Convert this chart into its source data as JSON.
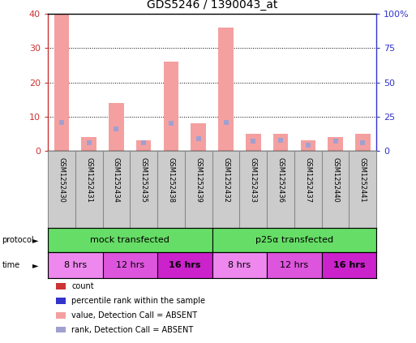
{
  "title": "GDS5246 / 1390043_at",
  "samples": [
    "GSM1252430",
    "GSM1252431",
    "GSM1252434",
    "GSM1252435",
    "GSM1252438",
    "GSM1252439",
    "GSM1252432",
    "GSM1252433",
    "GSM1252436",
    "GSM1252437",
    "GSM1252440",
    "GSM1252441"
  ],
  "bar_values": [
    40,
    4,
    14,
    3,
    26,
    8,
    36,
    5,
    5,
    3,
    4,
    5
  ],
  "rank_values": [
    21,
    6,
    16,
    6,
    20,
    9,
    21,
    7,
    8,
    4,
    7,
    6
  ],
  "ylim_left": [
    0,
    40
  ],
  "ylim_right": [
    0,
    100
  ],
  "yticks_left": [
    0,
    10,
    20,
    30,
    40
  ],
  "yticks_right": [
    0,
    25,
    50,
    75,
    100
  ],
  "ytick_labels_right": [
    "0",
    "25",
    "50",
    "75",
    "100%"
  ],
  "bar_color": "#f4a0a0",
  "rank_color": "#a0a0d0",
  "protocol_groups": [
    {
      "label": "mock transfected",
      "start": 0,
      "end": 6,
      "color": "#66dd66"
    },
    {
      "label": "p25α transfected",
      "start": 6,
      "end": 12,
      "color": "#66dd66"
    }
  ],
  "time_groups": [
    {
      "label": "8 hrs",
      "start": 0,
      "end": 2,
      "color": "#ee88ee",
      "bold": false
    },
    {
      "label": "12 hrs",
      "start": 2,
      "end": 4,
      "color": "#dd55dd",
      "bold": false
    },
    {
      "label": "16 hrs",
      "start": 4,
      "end": 6,
      "color": "#cc22cc",
      "bold": true
    },
    {
      "label": "8 hrs",
      "start": 6,
      "end": 8,
      "color": "#ee88ee",
      "bold": false
    },
    {
      "label": "12 hrs",
      "start": 8,
      "end": 10,
      "color": "#dd55dd",
      "bold": false
    },
    {
      "label": "16 hrs",
      "start": 10,
      "end": 12,
      "color": "#cc22cc",
      "bold": true
    }
  ],
  "legend_items": [
    {
      "label": "count",
      "color": "#cc3333"
    },
    {
      "label": "percentile rank within the sample",
      "color": "#3333cc"
    },
    {
      "label": "value, Detection Call = ABSENT",
      "color": "#f4a0a0"
    },
    {
      "label": "rank, Detection Call = ABSENT",
      "color": "#a0a0d0"
    }
  ],
  "left_axis_color": "#cc3333",
  "right_axis_color": "#3333cc",
  "sample_bg_color": "#cccccc",
  "background_color": "#ffffff"
}
